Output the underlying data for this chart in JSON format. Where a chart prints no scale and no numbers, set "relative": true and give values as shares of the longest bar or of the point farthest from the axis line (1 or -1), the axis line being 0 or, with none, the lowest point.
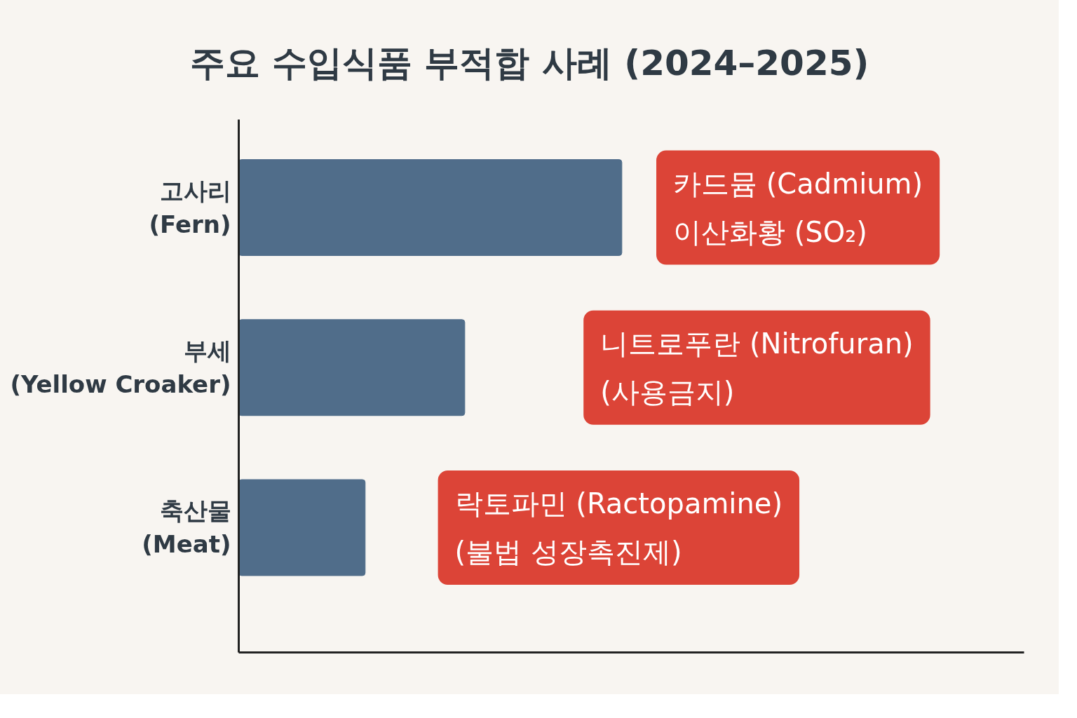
{
  "chart_data": {
    "type": "bar",
    "orientation": "horizontal",
    "relative": true,
    "title": "주요 수입식품 부적합 사례 (2024–2025)",
    "categories": [
      "고사리\n(Fern)",
      "부세\n(Yellow Croaker)",
      "축산물\n(Meat)"
    ],
    "values": [
      1,
      0.59,
      0.33
    ],
    "color": "#506d8a",
    "annotations": [
      "카드뮴 (Cadmium)\n이산화황 (SO₂)",
      "니트로푸란 (Nitrofuran)\n(사용금지)",
      "락토파민 (Ractopamine)\n(불법 성장촉진제)"
    ]
  }
}
